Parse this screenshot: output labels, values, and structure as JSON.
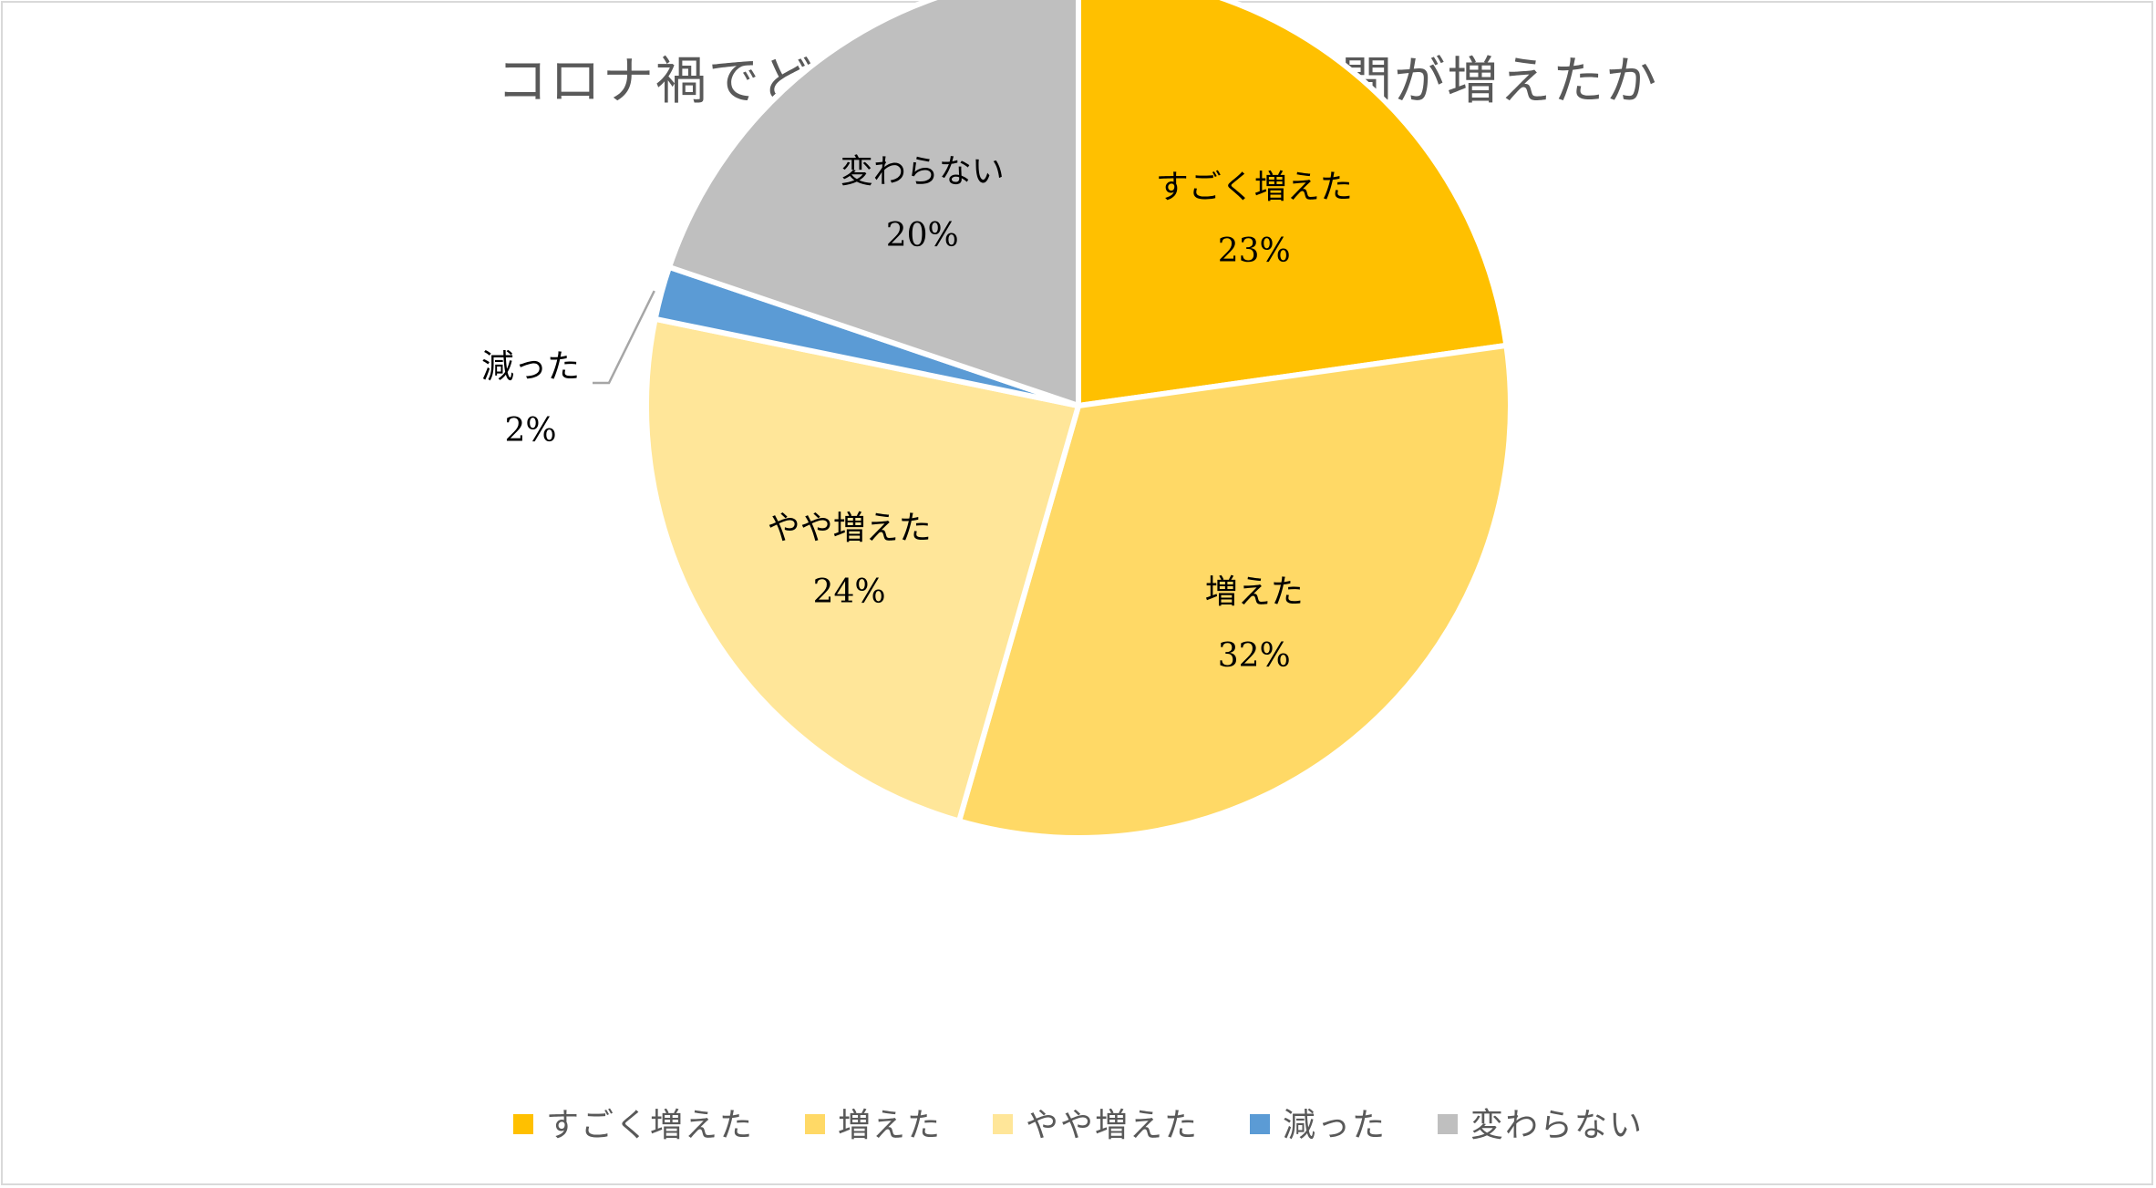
{
  "chart_data": {
    "type": "pie",
    "title": "コロナ禍でどれだけスマホの使用時間が増えたか",
    "start_angle_deg": 0,
    "direction": "clockwise",
    "slices": [
      {
        "label": "すごく増えた",
        "value": 23,
        "display": "23%",
        "color": "#FFC000"
      },
      {
        "label": "増えた",
        "value": 32,
        "display": "32%",
        "color": "#FFD966"
      },
      {
        "label": "やや増えた",
        "value": 24,
        "display": "24%",
        "color": "#FFE699"
      },
      {
        "label": "減った",
        "value": 2,
        "display": "2%",
        "color": "#5B9BD5"
      },
      {
        "label": "変わらない",
        "value": 20,
        "display": "20%",
        "color": "#BFBFBF"
      }
    ],
    "legend_position": "bottom",
    "slice_border_color": "#FFFFFF",
    "leader_line_color": "#A6A6A6"
  }
}
